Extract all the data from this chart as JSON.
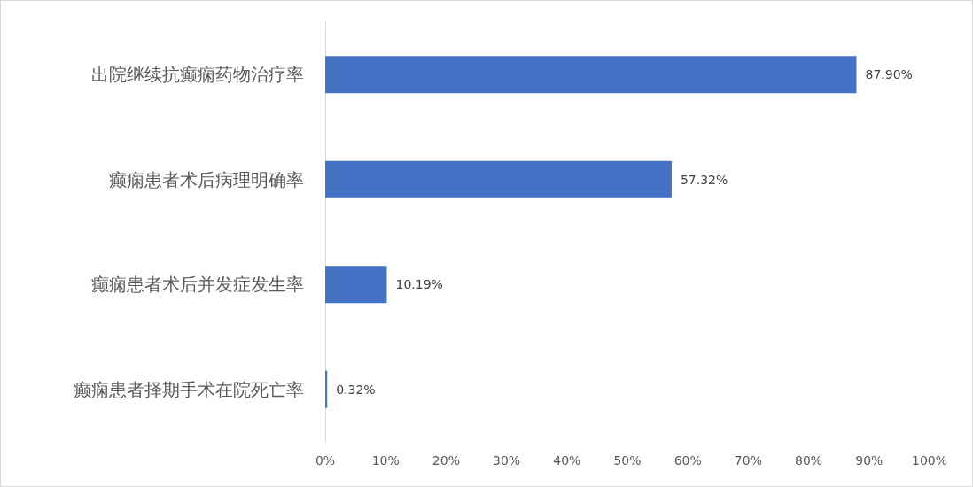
{
  "chart_data": {
    "type": "bar",
    "orientation": "horizontal",
    "categories": [
      "出院继续抗癫痫药物治疗率",
      "癫痫患者术后病理明确率",
      "癫痫患者术后并发症发生率",
      "癫痫患者择期手术在院死亡率"
    ],
    "values": [
      87.9,
      57.32,
      10.19,
      0.32
    ],
    "value_labels": [
      "87.90%",
      "57.32%",
      "10.19%",
      "0.32%"
    ],
    "color": "#4472c4",
    "xlim": [
      0,
      100
    ],
    "xticks": [
      {
        "value": 0,
        "label": "0%"
      },
      {
        "value": 10,
        "label": "10%"
      },
      {
        "value": 20,
        "label": "20%"
      },
      {
        "value": 30,
        "label": "30%"
      },
      {
        "value": 40,
        "label": "40%"
      },
      {
        "value": 50,
        "label": "50%"
      },
      {
        "value": 60,
        "label": "60%"
      },
      {
        "value": 70,
        "label": "70%"
      },
      {
        "value": 80,
        "label": "80%"
      },
      {
        "value": 90,
        "label": "90%"
      },
      {
        "value": 100,
        "label": "100%"
      }
    ],
    "grid": false
  }
}
